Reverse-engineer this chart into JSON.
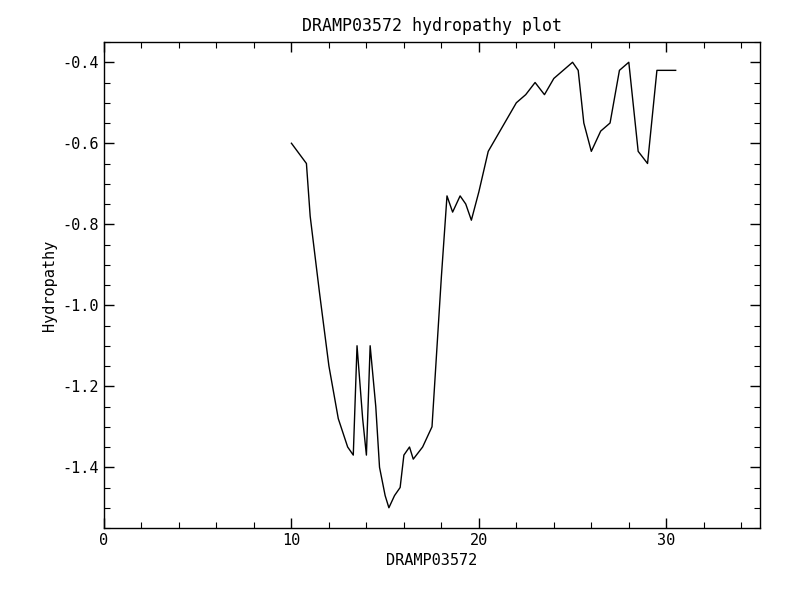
{
  "title": "DRAMP03572 hydropathy plot",
  "xlabel": "DRAMP03572",
  "ylabel": "Hydropathy",
  "xlim": [
    0,
    35
  ],
  "ylim": [
    -1.55,
    -0.35
  ],
  "yticks": [
    -1.4,
    -1.2,
    -1.0,
    -0.8,
    -0.6,
    -0.4
  ],
  "xticks": [
    0,
    10,
    20,
    30
  ],
  "line_color": "black",
  "line_width": 1.0,
  "background_color": "white",
  "x_points": [
    10.0,
    10.8,
    11.0,
    11.5,
    12.0,
    12.5,
    13.0,
    13.3,
    13.5,
    13.8,
    14.0,
    14.2,
    14.5,
    14.7,
    15.0,
    15.2,
    15.5,
    15.8,
    16.0,
    16.3,
    16.5,
    17.0,
    17.5,
    18.0,
    18.3,
    18.6,
    19.0,
    19.3,
    19.6,
    20.0,
    20.5,
    21.0,
    21.5,
    22.0,
    22.5,
    23.0,
    23.5,
    24.0,
    24.5,
    25.0,
    25.3,
    25.6,
    26.0,
    26.5,
    27.0,
    27.5,
    28.0,
    28.5,
    29.0,
    29.5,
    30.0,
    30.5
  ],
  "y_points": [
    -0.6,
    -0.65,
    -0.78,
    -0.97,
    -1.15,
    -1.28,
    -1.35,
    -1.37,
    -1.1,
    -1.28,
    -1.37,
    -1.1,
    -1.25,
    -1.4,
    -1.47,
    -1.5,
    -1.47,
    -1.45,
    -1.37,
    -1.35,
    -1.38,
    -1.35,
    -1.3,
    -0.93,
    -0.73,
    -0.77,
    -0.73,
    -0.75,
    -0.79,
    -0.72,
    -0.62,
    -0.58,
    -0.54,
    -0.5,
    -0.48,
    -0.45,
    -0.48,
    -0.44,
    -0.42,
    -0.4,
    -0.42,
    -0.55,
    -0.62,
    -0.57,
    -0.55,
    -0.42,
    -0.4,
    -0.62,
    -0.65,
    -0.42,
    -0.42,
    -0.42
  ]
}
